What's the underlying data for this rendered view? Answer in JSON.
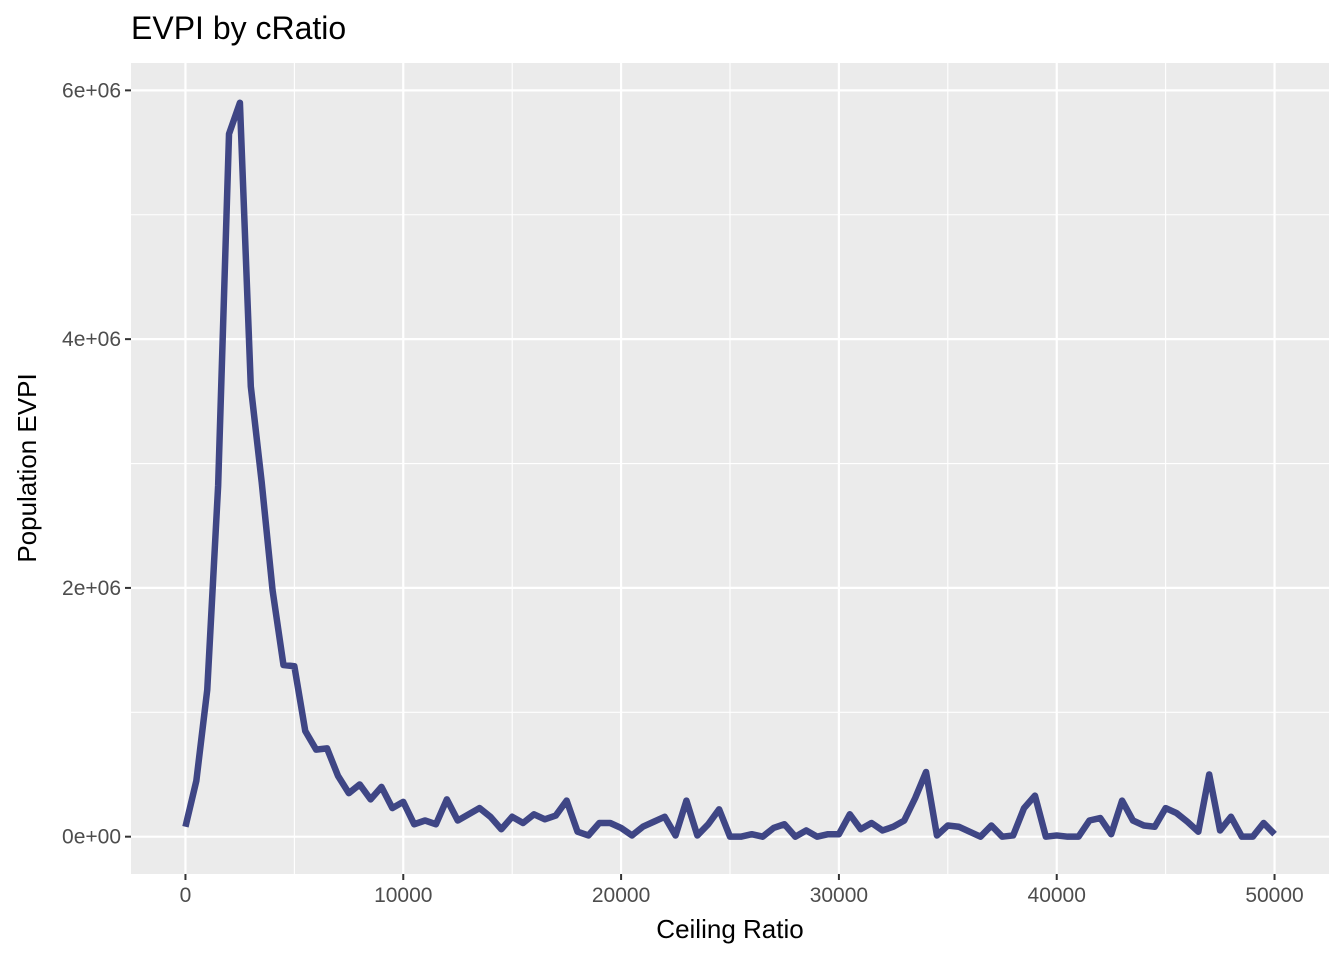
{
  "chart_data": {
    "type": "line",
    "title": "EVPI by cRatio",
    "xlabel": "Ceiling Ratio",
    "ylabel": "Population EVPI",
    "xlim": [
      -2500,
      52500
    ],
    "ylim": [
      -300000,
      6220000
    ],
    "x_ticks": [
      0,
      10000,
      20000,
      30000,
      40000,
      50000
    ],
    "x_tick_labels": [
      "0",
      "10000",
      "20000",
      "30000",
      "40000",
      "50000"
    ],
    "y_ticks": [
      0,
      2000000,
      4000000,
      6000000
    ],
    "y_tick_labels": [
      "0e+00",
      "2e+06",
      "4e+06",
      "6e+06"
    ],
    "x_minor_ticks": [
      5000,
      15000,
      25000,
      35000,
      45000
    ],
    "y_minor_ticks": [
      1000000,
      3000000,
      5000000
    ],
    "grid": true,
    "legend": "none",
    "series": [
      {
        "color": "#3f4685",
        "x": [
          0,
          500,
          1000,
          1500,
          2000,
          2500,
          3000,
          3500,
          4000,
          4500,
          5000,
          5500,
          6000,
          6500,
          7000,
          7500,
          8000,
          8500,
          9000,
          9500,
          10000,
          10500,
          11000,
          11500,
          12000,
          12500,
          13000,
          13500,
          14000,
          14500,
          15000,
          15500,
          16000,
          16500,
          17000,
          17500,
          18000,
          18500,
          19000,
          19500,
          20000,
          20500,
          21000,
          21500,
          22000,
          22500,
          23000,
          23500,
          24000,
          24500,
          25000,
          25500,
          26000,
          26500,
          27000,
          27500,
          28000,
          28500,
          29000,
          29500,
          30000,
          30500,
          31000,
          31500,
          32000,
          32500,
          33000,
          33500,
          34000,
          34500,
          35000,
          35500,
          36000,
          36500,
          37000,
          37500,
          38000,
          38500,
          39000,
          39500,
          40000,
          40500,
          41000,
          41500,
          42000,
          42500,
          43000,
          43500,
          44000,
          44500,
          45000,
          45500,
          46000,
          46500,
          47000,
          47500,
          48000,
          48500,
          49000,
          49500,
          50000
        ],
        "values": [
          80000,
          450000,
          1180000,
          2820000,
          5650000,
          5900000,
          3620000,
          2850000,
          1980000,
          1380000,
          1370000,
          850000,
          700000,
          710000,
          490000,
          350000,
          420000,
          300000,
          400000,
          230000,
          280000,
          100000,
          130000,
          100000,
          300000,
          130000,
          180000,
          230000,
          160000,
          60000,
          160000,
          110000,
          180000,
          140000,
          170000,
          290000,
          40000,
          10000,
          110000,
          110000,
          70000,
          10000,
          80000,
          120000,
          160000,
          10000,
          290000,
          10000,
          100000,
          220000,
          0,
          0,
          20000,
          0,
          70000,
          100000,
          0,
          50000,
          0,
          20000,
          20000,
          180000,
          60000,
          110000,
          50000,
          80000,
          130000,
          310000,
          520000,
          10000,
          90000,
          80000,
          40000,
          0,
          90000,
          0,
          10000,
          230000,
          330000,
          0,
          10000,
          0,
          0,
          130000,
          150000,
          20000,
          290000,
          130000,
          90000,
          80000,
          230000,
          190000,
          120000,
          40000,
          500000,
          50000,
          160000,
          0,
          0,
          110000,
          20000
        ]
      }
    ]
  }
}
